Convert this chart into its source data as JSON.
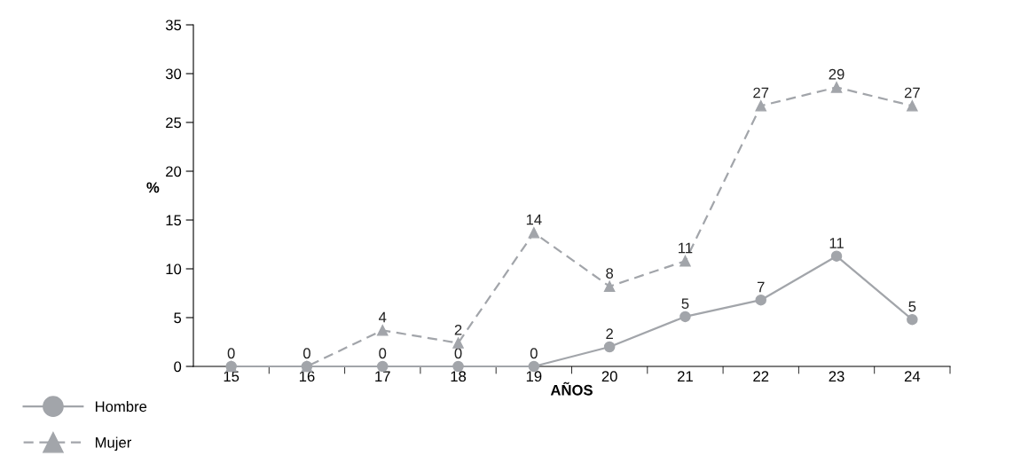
{
  "chart_data": {
    "type": "line",
    "xlabel": "AÑOS",
    "ylabel": "%",
    "categories": [
      "15",
      "16",
      "17",
      "18",
      "19",
      "20",
      "21",
      "22",
      "23",
      "24"
    ],
    "series": [
      {
        "name": "Hombre",
        "color": "#a2a5aa",
        "marker": "circle",
        "line_style": "solid",
        "values": [
          0,
          0,
          0,
          0,
          0,
          2.0,
          5.1,
          6.8,
          11.3,
          4.8
        ],
        "value_labels": [
          "0",
          "0",
          "0",
          "0",
          "0",
          "2",
          "5",
          "7",
          "11",
          "5"
        ]
      },
      {
        "name": "Mujer",
        "color": "#a2a5aa",
        "marker": "triangle",
        "line_style": "dashed",
        "values": [
          0,
          0,
          3.7,
          2.4,
          13.7,
          8.2,
          10.8,
          26.7,
          28.6,
          26.7
        ],
        "value_labels": [
          null,
          null,
          "4",
          "2",
          "14",
          "8",
          "11",
          "27",
          "29",
          "27"
        ]
      }
    ],
    "ylim": [
      0,
      35
    ],
    "yticks": [
      0,
      5,
      10,
      15,
      20,
      25,
      30,
      35
    ],
    "grid": false,
    "legend": "bottom left"
  }
}
